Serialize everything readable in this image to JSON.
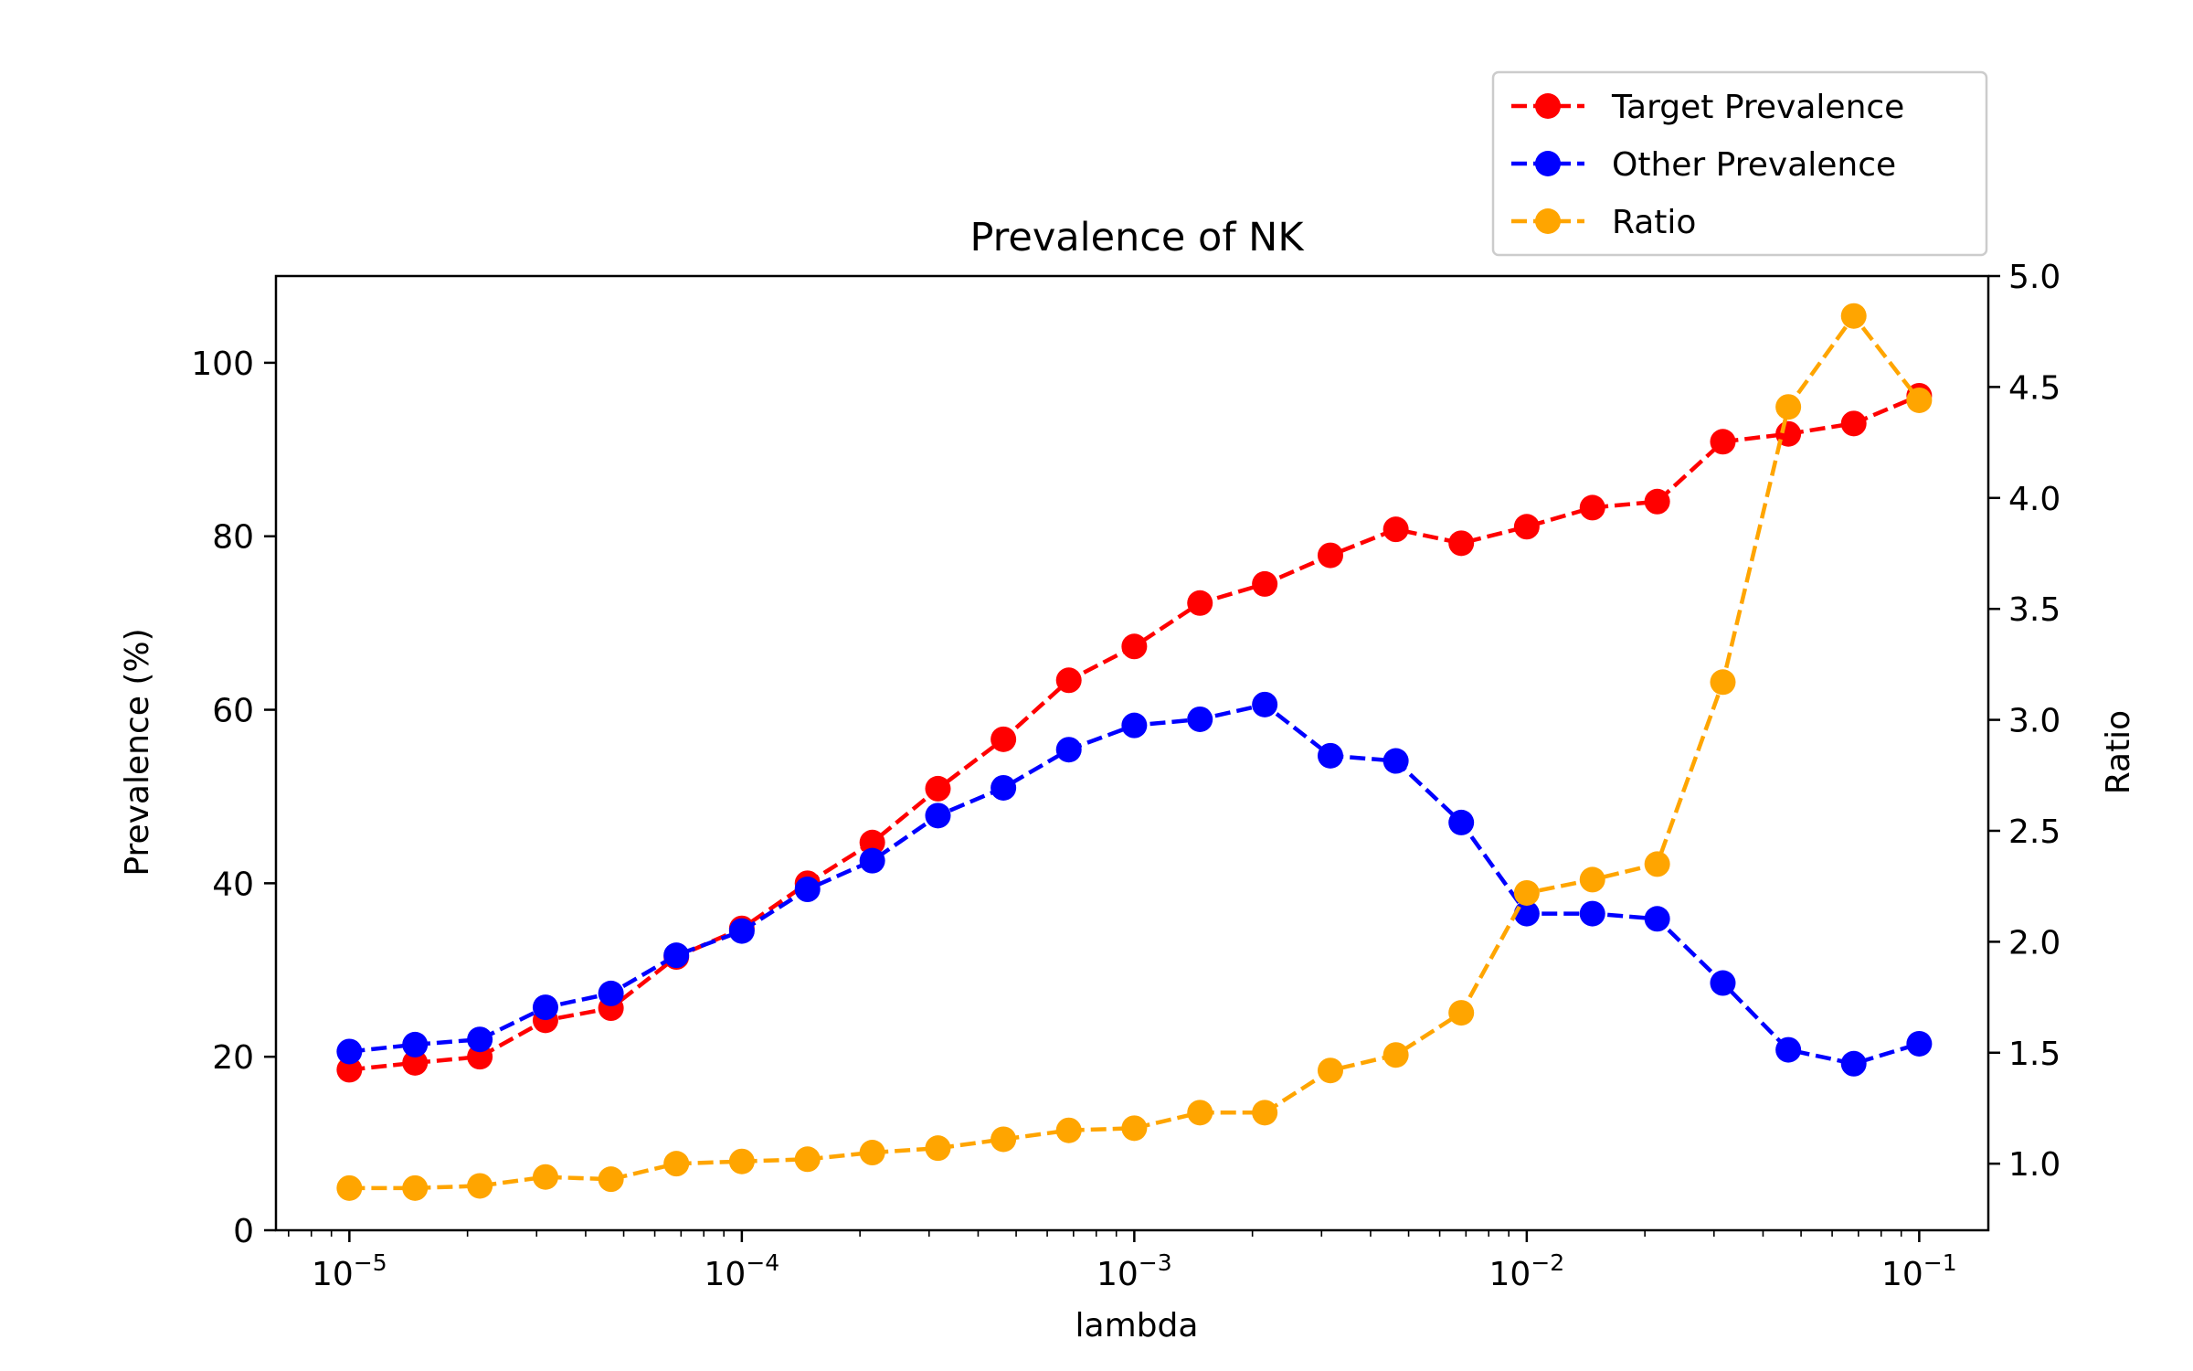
{
  "chart_data": {
    "type": "line",
    "title": "Prevalence of NK",
    "xlabel": "lambda",
    "ylabel": "Prevalence (%)",
    "ylabel_right": "Ratio",
    "xscale": "log",
    "xlim": [
      6.5e-06,
      0.15
    ],
    "ylim": [
      0,
      110
    ],
    "ylim_right": [
      0.7,
      5.0
    ],
    "x": [
      1e-05,
      1.47e-05,
      2.15e-05,
      3.16e-05,
      4.64e-05,
      6.81e-05,
      0.0001,
      0.000147,
      0.000215,
      0.000316,
      0.000464,
      0.000681,
      0.001,
      0.00147,
      0.00215,
      0.00316,
      0.00464,
      0.00681,
      0.01,
      0.0147,
      0.0215,
      0.0316,
      0.0464,
      0.0681,
      0.1
    ],
    "x_ticks": [
      {
        "value": 1e-05,
        "base": "10",
        "exp": "−5"
      },
      {
        "value": 0.0001,
        "base": "10",
        "exp": "−4"
      },
      {
        "value": 0.001,
        "base": "10",
        "exp": "−3"
      },
      {
        "value": 0.01,
        "base": "10",
        "exp": "−2"
      },
      {
        "value": 0.1,
        "base": "10",
        "exp": "−1"
      }
    ],
    "y_ticks": [
      "0",
      "20",
      "40",
      "60",
      "80",
      "100"
    ],
    "y_right_ticks": [
      "1.0",
      "1.5",
      "2.0",
      "2.5",
      "3.0",
      "3.5",
      "4.0",
      "4.5",
      "5.0"
    ],
    "legend_position": "top-right",
    "series": [
      {
        "name": "Target Prevalence",
        "axis": "left",
        "color": "#ff0000",
        "values": [
          18.5,
          19.3,
          20.0,
          24.2,
          25.6,
          31.5,
          34.8,
          40.0,
          44.7,
          50.9,
          56.6,
          63.4,
          67.3,
          72.3,
          74.5,
          77.8,
          80.8,
          79.2,
          81.1,
          83.3,
          84.0,
          90.9,
          91.8,
          93.0,
          96.2
        ]
      },
      {
        "name": "Other Prevalence",
        "axis": "left",
        "color": "#0000ff",
        "values": [
          20.6,
          21.4,
          22.0,
          25.7,
          27.3,
          31.7,
          34.5,
          39.3,
          42.6,
          47.8,
          51.0,
          55.4,
          58.2,
          58.9,
          60.6,
          54.7,
          54.1,
          47.0,
          36.5,
          36.5,
          35.9,
          28.5,
          20.8,
          19.2,
          21.5
        ]
      },
      {
        "name": "Ratio",
        "axis": "right",
        "color": "#ffa500",
        "values": [
          0.89,
          0.89,
          0.9,
          0.94,
          0.93,
          1.0,
          1.01,
          1.02,
          1.05,
          1.07,
          1.11,
          1.15,
          1.16,
          1.23,
          1.23,
          1.42,
          1.49,
          1.68,
          2.22,
          2.28,
          2.35,
          3.17,
          4.41,
          4.82,
          4.44
        ]
      }
    ]
  }
}
